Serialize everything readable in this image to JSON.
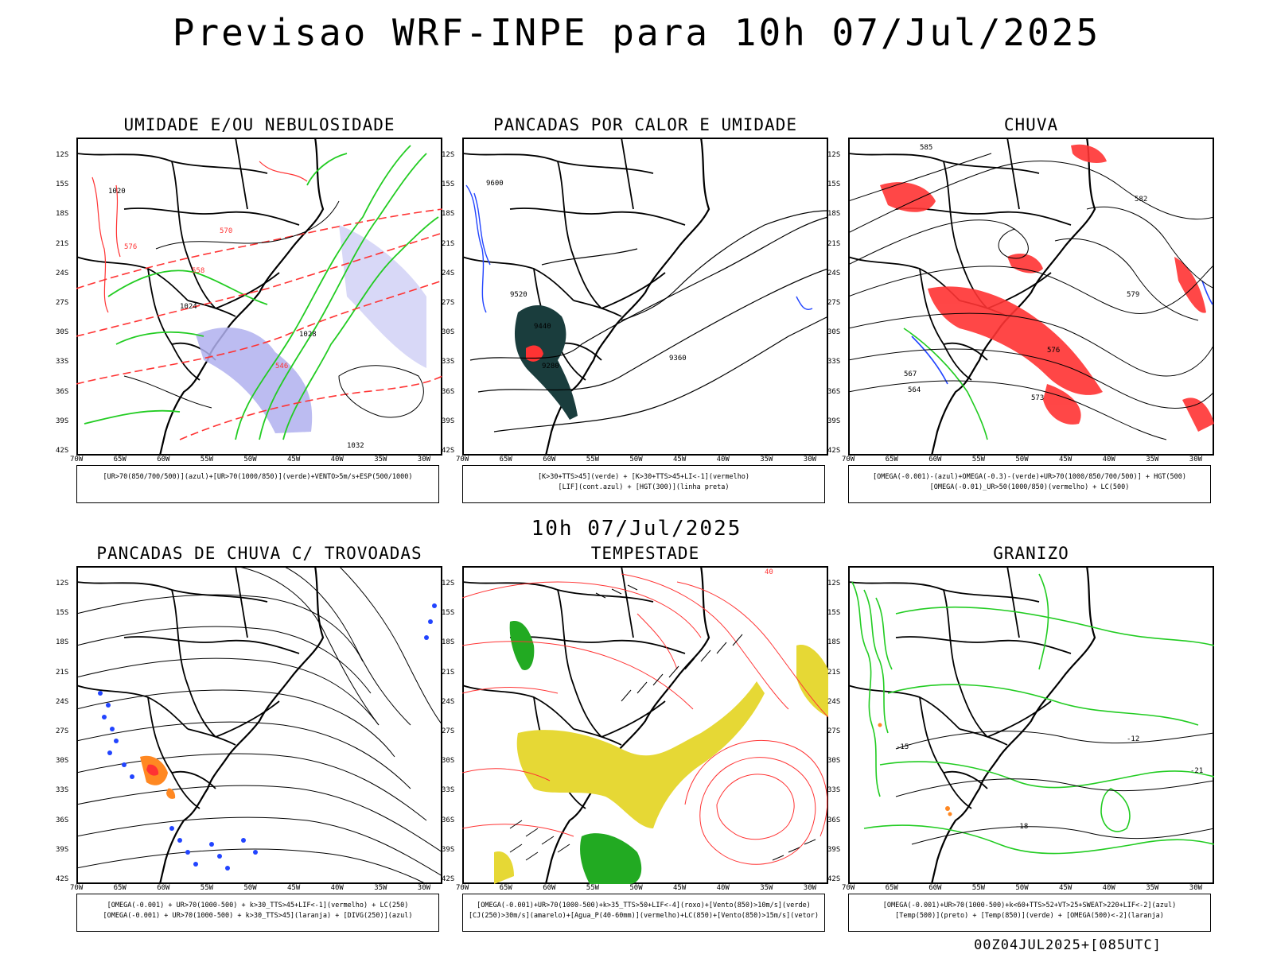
{
  "title": "Previsao WRF-INPE  para 10h 07/Jul/2025",
  "subtitle": "10h 07/Jul/2025",
  "run_label": "00Z04JUL2025+[085UTC]",
  "axes": {
    "lat_ticks": [
      "12S",
      "15S",
      "18S",
      "21S",
      "24S",
      "27S",
      "30S",
      "33S",
      "36S",
      "39S",
      "42S"
    ],
    "lon_ticks": [
      "70W",
      "65W",
      "60W",
      "55W",
      "50W",
      "45W",
      "40W",
      "35W",
      "30W"
    ]
  },
  "panels": [
    {
      "id": "umidade",
      "title": "UMIDADE E/OU NEBULOSIDADE",
      "legend": [
        "[UR>70(850/700/500)](azul)+[UR>70(1000/850)](verde)+VENTO>5m/s+ESP(500/1000)"
      ],
      "contour_labels": [
        "1020",
        "1024",
        "1028",
        "1032",
        "546",
        "558",
        "570",
        "576"
      ],
      "colors": {
        "blue_fill": "#9999ee",
        "green": "#22cc22",
        "red": "#ff3333"
      }
    },
    {
      "id": "pancadas-calor",
      "title": "PANCADAS POR CALOR E UMIDADE",
      "legend": [
        "[K>30+TTS>45](verde) + [K>30+TTS>45+LI<-1](vermelho)",
        "[LIF](cont.azul) + [HGT(300)](linha preta)"
      ],
      "contour_labels": [
        "9600",
        "9520",
        "9440",
        "9360",
        "9280"
      ],
      "colors": {
        "dark_fill": "#1a3d3d",
        "red": "#ff3333",
        "blue": "#2244ff"
      }
    },
    {
      "id": "chuva",
      "title": "CHUVA",
      "legend": [
        "[OMEGA(-0.001)-(azul)+OMEGA(-0.3)-(verde)+UR>70(1000/850/700/500)] + HGT(500)",
        "[OMEGA(-0.01)_UR>50(1000/850)(vermelho) + LC(500)"
      ],
      "contour_labels": [
        "585",
        "582",
        "579",
        "576",
        "573",
        "567",
        "564"
      ],
      "colors": {
        "red": "#ff3333",
        "blue": "#2244ff",
        "green": "#22cc22"
      }
    },
    {
      "id": "pancadas-trovoadas",
      "title": "PANCADAS DE CHUVA C/ TROVOADAS",
      "legend": [
        "[OMEGA(-0.001) + UR>70(1000-500) + k>30_TTS>45+LIF<-1](vermelho) + LC(250)",
        "[OMEGA(-0.001) + UR>70(1000-500) + k>30_TTS>45](laranja) + [DIVG(250)](azul)"
      ],
      "contour_labels": [],
      "colors": {
        "blue": "#2244ff",
        "orange": "#ff8822",
        "red": "#ff3333"
      }
    },
    {
      "id": "tempestade",
      "title": "TEMPESTADE",
      "legend": [
        "[OMEGA(-0.001)+UR>70(1000-500)+k>35_TTS>50+LIF<-4](roxo)+[Vento(850)>10m/s](verde)",
        "[CJ(250)>30m/s](amarelo)+[Agua_P(40-60mm)](vermelho)+LC(850)+[Vento(850)>15m/s](vetor)"
      ],
      "contour_labels": [
        "40"
      ],
      "colors": {
        "yellow": "#e6d835",
        "green": "#22aa22",
        "red": "#ff3333"
      }
    },
    {
      "id": "granizo",
      "title": "GRANIZO",
      "legend": [
        "[OMEGA(-0.001)+UR>70(1000-500)+k<60+TTS>52+VT>25+SWEAT>220+LIF<-2](azul)",
        "[Temp(500)](preto) + [Temp(850)](verde) + [OMEGA(500)<-2](laranja)"
      ],
      "contour_labels": [
        "-12",
        "-15",
        "-18",
        "-21"
      ],
      "colors": {
        "green": "#22cc22",
        "orange": "#ff8822"
      }
    }
  ]
}
